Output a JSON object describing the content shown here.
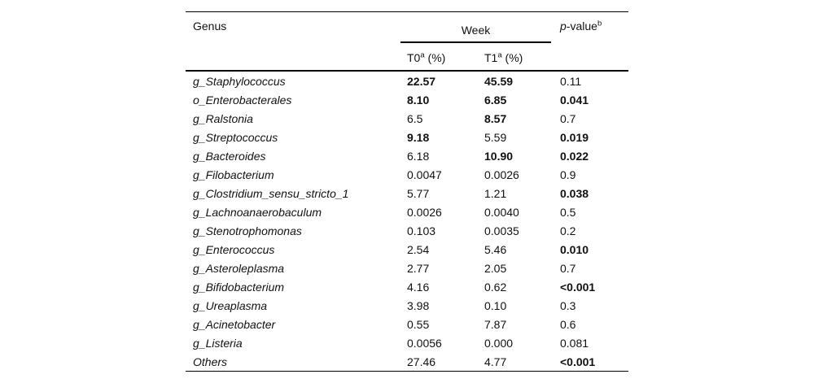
{
  "table": {
    "header": {
      "genus_label": "Genus",
      "week_label": "Week",
      "t0_label": "T0",
      "t1_label": "T1",
      "footnote_a": "a",
      "percent_unit": " (%)",
      "p_italic": "p",
      "p_rest": "-value",
      "footnote_b": "b"
    },
    "rows": [
      {
        "genus": "g_Staphylococcus",
        "t0": "22.57",
        "t0_bold": true,
        "t1": "45.59",
        "t1_bold": true,
        "p": "0.11",
        "p_bold": false
      },
      {
        "genus": "o_Enterobacterales",
        "t0": "8.10",
        "t0_bold": true,
        "t1": "6.85",
        "t1_bold": true,
        "p": "0.041",
        "p_bold": true
      },
      {
        "genus": "g_Ralstonia",
        "t0": "6.5",
        "t0_bold": false,
        "t1": "8.57",
        "t1_bold": true,
        "p": "0.7",
        "p_bold": false
      },
      {
        "genus": "g_Streptococcus",
        "t0": "9.18",
        "t0_bold": true,
        "t1": "5.59",
        "t1_bold": false,
        "p": "0.019",
        "p_bold": true
      },
      {
        "genus": "g_Bacteroides",
        "t0": "6.18",
        "t0_bold": false,
        "t1": "10.90",
        "t1_bold": true,
        "p": "0.022",
        "p_bold": true
      },
      {
        "genus": "g_Filobacterium",
        "t0": "0.0047",
        "t0_bold": false,
        "t1": "0.0026",
        "t1_bold": false,
        "p": "0.9",
        "p_bold": false
      },
      {
        "genus": "g_Clostridium_sensu_stricto_1",
        "t0": "5.77",
        "t0_bold": false,
        "t1": "1.21",
        "t1_bold": false,
        "p": "0.038",
        "p_bold": true
      },
      {
        "genus": "g_Lachnoanaerobaculum",
        "t0": "0.0026",
        "t0_bold": false,
        "t1": "0.0040",
        "t1_bold": false,
        "p": "0.5",
        "p_bold": false
      },
      {
        "genus": "g_Stenotrophomonas",
        "t0": "0.103",
        "t0_bold": false,
        "t1": "0.0035",
        "t1_bold": false,
        "p": "0.2",
        "p_bold": false
      },
      {
        "genus": "g_Enterococcus",
        "t0": "2.54",
        "t0_bold": false,
        "t1": "5.46",
        "t1_bold": false,
        "p": "0.010",
        "p_bold": true
      },
      {
        "genus": "g_Asteroleplasma",
        "t0": "2.77",
        "t0_bold": false,
        "t1": "2.05",
        "t1_bold": false,
        "p": "0.7",
        "p_bold": false
      },
      {
        "genus": "g_Bifidobacterium",
        "t0": "4.16",
        "t0_bold": false,
        "t1": "0.62",
        "t1_bold": false,
        "p": "<0.001",
        "p_bold": true
      },
      {
        "genus": "g_Ureaplasma",
        "t0": "3.98",
        "t0_bold": false,
        "t1": "0.10",
        "t1_bold": false,
        "p": "0.3",
        "p_bold": false
      },
      {
        "genus": "g_Acinetobacter",
        "t0": "0.55",
        "t0_bold": false,
        "t1": "7.87",
        "t1_bold": false,
        "p": "0.6",
        "p_bold": false
      },
      {
        "genus": "g_Listeria",
        "t0": "0.0056",
        "t0_bold": false,
        "t1": "0.000",
        "t1_bold": false,
        "p": "0.081",
        "p_bold": false
      },
      {
        "genus": "Others",
        "t0": "27.46",
        "t0_bold": false,
        "t1": "4.77",
        "t1_bold": false,
        "p": "<0.001",
        "p_bold": true
      }
    ]
  }
}
